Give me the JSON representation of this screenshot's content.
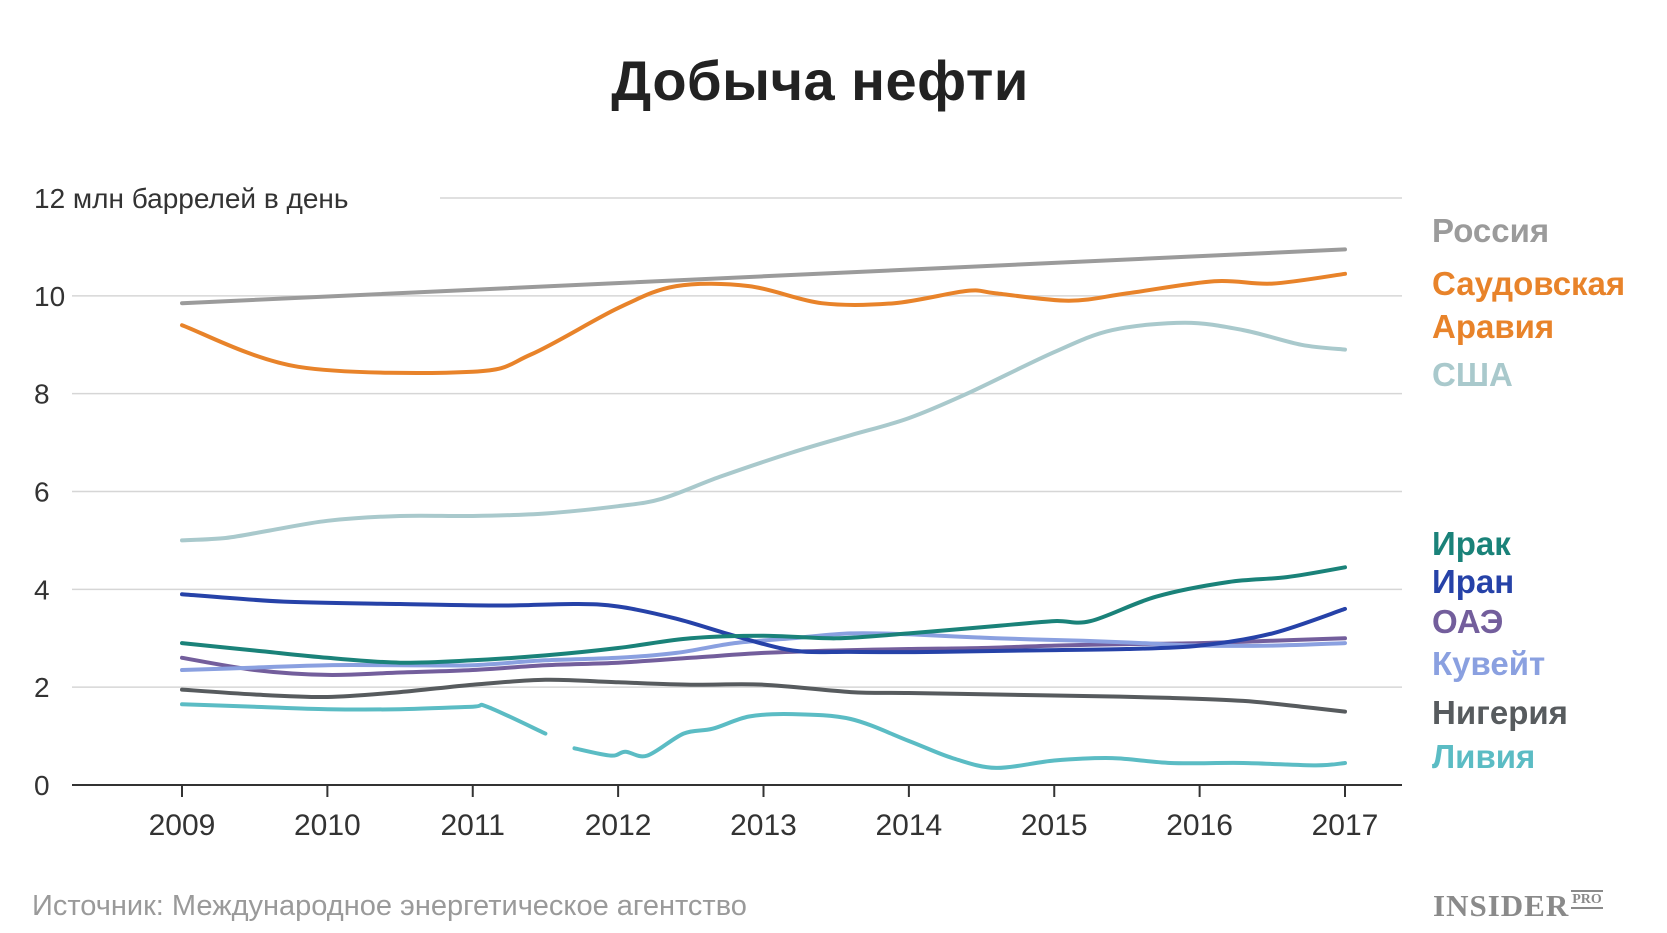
{
  "title": "Добыча нефти",
  "source": "Источник: Международное энергетическое агентство",
  "brand": {
    "name": "INSIDER",
    "suffix": "PRO"
  },
  "chart_data": {
    "type": "line",
    "ylabel": "12 млн баррелей в день",
    "ylim": [
      0,
      12
    ],
    "xlim": [
      2009,
      2017
    ],
    "yticks": [
      0,
      2,
      4,
      6,
      8,
      10,
      12
    ],
    "ytick_labels": [
      "0",
      "2",
      "4",
      "6",
      "8",
      "10",
      ""
    ],
    "xticks": [
      2009,
      2010,
      2011,
      2012,
      2013,
      2014,
      2015,
      2016,
      2017
    ],
    "xtick_labels": [
      "2009",
      "2010",
      "2011",
      "2012",
      "2013",
      "2014",
      "2015",
      "2016",
      "2017"
    ],
    "grid": true,
    "legend": "right, labels beside line ends",
    "series": [
      {
        "name": "Россия",
        "label_lines": [
          "Россия"
        ],
        "color": "#9b9b9b",
        "points": [
          [
            2009,
            9.85
          ],
          [
            2017,
            10.95
          ]
        ]
      },
      {
        "name": "Саудовская Аравия",
        "label_lines": [
          "Саудовская",
          "Аравия"
        ],
        "color": "#e8832a",
        "points": [
          [
            2009,
            9.4
          ],
          [
            2009.8,
            8.55
          ],
          [
            2011,
            8.45
          ],
          [
            2011.4,
            8.8
          ],
          [
            2012,
            9.75
          ],
          [
            2012.4,
            10.2
          ],
          [
            2012.9,
            10.2
          ],
          [
            2013.4,
            9.85
          ],
          [
            2013.9,
            9.85
          ],
          [
            2014.4,
            10.1
          ],
          [
            2014.6,
            10.05
          ],
          [
            2015.1,
            9.9
          ],
          [
            2015.5,
            10.05
          ],
          [
            2016.1,
            10.3
          ],
          [
            2016.5,
            10.25
          ],
          [
            2017,
            10.45
          ]
        ]
      },
      {
        "name": "США",
        "label_lines": [
          "США"
        ],
        "color": "#a9c9cc",
        "points": [
          [
            2009,
            5.0
          ],
          [
            2009.3,
            5.05
          ],
          [
            2009.6,
            5.2
          ],
          [
            2010,
            5.4
          ],
          [
            2010.5,
            5.5
          ],
          [
            2011,
            5.5
          ],
          [
            2011.5,
            5.55
          ],
          [
            2012,
            5.7
          ],
          [
            2012.3,
            5.85
          ],
          [
            2012.7,
            6.3
          ],
          [
            2013.2,
            6.8
          ],
          [
            2013.6,
            7.15
          ],
          [
            2014,
            7.5
          ],
          [
            2014.4,
            8.0
          ],
          [
            2015,
            8.85
          ],
          [
            2015.4,
            9.3
          ],
          [
            2015.9,
            9.45
          ],
          [
            2016.3,
            9.3
          ],
          [
            2016.7,
            9.0
          ],
          [
            2017,
            8.9
          ]
        ]
      },
      {
        "name": "Ирак",
        "label_lines": [
          "Ирак"
        ],
        "color": "#1a8279",
        "points": [
          [
            2009,
            2.9
          ],
          [
            2009.5,
            2.75
          ],
          [
            2010,
            2.6
          ],
          [
            2010.5,
            2.5
          ],
          [
            2011,
            2.55
          ],
          [
            2011.5,
            2.65
          ],
          [
            2012,
            2.8
          ],
          [
            2012.5,
            3.0
          ],
          [
            2013,
            3.05
          ],
          [
            2013.5,
            3.0
          ],
          [
            2014,
            3.1
          ],
          [
            2014.6,
            3.25
          ],
          [
            2015,
            3.35
          ],
          [
            2015.25,
            3.35
          ],
          [
            2015.7,
            3.85
          ],
          [
            2016.2,
            4.15
          ],
          [
            2016.6,
            4.25
          ],
          [
            2017,
            4.45
          ]
        ]
      },
      {
        "name": "Иран",
        "label_lines": [
          "Иран"
        ],
        "color": "#2642a8",
        "points": [
          [
            2009,
            3.9
          ],
          [
            2009.7,
            3.75
          ],
          [
            2010.5,
            3.7
          ],
          [
            2011.2,
            3.67
          ],
          [
            2011.7,
            3.7
          ],
          [
            2012,
            3.65
          ],
          [
            2012.4,
            3.4
          ],
          [
            2012.8,
            3.05
          ],
          [
            2013.2,
            2.75
          ],
          [
            2013.6,
            2.72
          ],
          [
            2014.2,
            2.72
          ],
          [
            2014.8,
            2.75
          ],
          [
            2015.5,
            2.78
          ],
          [
            2016,
            2.85
          ],
          [
            2016.5,
            3.1
          ],
          [
            2017,
            3.6
          ]
        ]
      },
      {
        "name": "ОАЭ",
        "label_lines": [
          "ОАЭ"
        ],
        "color": "#735e9c",
        "points": [
          [
            2009,
            2.6
          ],
          [
            2009.5,
            2.35
          ],
          [
            2010,
            2.25
          ],
          [
            2010.5,
            2.3
          ],
          [
            2011,
            2.35
          ],
          [
            2011.5,
            2.45
          ],
          [
            2012,
            2.5
          ],
          [
            2012.5,
            2.6
          ],
          [
            2013,
            2.7
          ],
          [
            2013.5,
            2.75
          ],
          [
            2014,
            2.78
          ],
          [
            2014.5,
            2.8
          ],
          [
            2015,
            2.85
          ],
          [
            2015.5,
            2.88
          ],
          [
            2016,
            2.9
          ],
          [
            2016.5,
            2.95
          ],
          [
            2017,
            3.0
          ]
        ]
      },
      {
        "name": "Кувейт",
        "label_lines": [
          "Кувейт"
        ],
        "color": "#8aa0e0",
        "points": [
          [
            2009,
            2.35
          ],
          [
            2009.5,
            2.4
          ],
          [
            2010,
            2.45
          ],
          [
            2010.5,
            2.45
          ],
          [
            2011,
            2.45
          ],
          [
            2011.5,
            2.55
          ],
          [
            2012,
            2.6
          ],
          [
            2012.4,
            2.7
          ],
          [
            2012.8,
            2.9
          ],
          [
            2013.2,
            3.0
          ],
          [
            2013.6,
            3.1
          ],
          [
            2014,
            3.08
          ],
          [
            2014.6,
            3.0
          ],
          [
            2015.2,
            2.95
          ],
          [
            2015.6,
            2.9
          ],
          [
            2016,
            2.85
          ],
          [
            2016.5,
            2.85
          ],
          [
            2017,
            2.9
          ]
        ]
      },
      {
        "name": "Нигерия",
        "label_lines": [
          "Нигерия"
        ],
        "color": "#575b5e",
        "points": [
          [
            2009,
            1.95
          ],
          [
            2009.5,
            1.85
          ],
          [
            2010,
            1.8
          ],
          [
            2010.5,
            1.9
          ],
          [
            2011,
            2.05
          ],
          [
            2011.5,
            2.15
          ],
          [
            2012,
            2.1
          ],
          [
            2012.5,
            2.05
          ],
          [
            2013,
            2.05
          ],
          [
            2013.6,
            1.9
          ],
          [
            2014,
            1.88
          ],
          [
            2014.6,
            1.85
          ],
          [
            2015.2,
            1.82
          ],
          [
            2015.8,
            1.78
          ],
          [
            2016.3,
            1.72
          ],
          [
            2016.7,
            1.6
          ],
          [
            2017,
            1.5
          ]
        ]
      },
      {
        "name": "Ливия",
        "label_lines": [
          "Ливия"
        ],
        "color": "#5bbcc4",
        "points": [
          [
            2009,
            1.65
          ],
          [
            2009.5,
            1.6
          ],
          [
            2010,
            1.55
          ],
          [
            2010.5,
            1.55
          ],
          [
            2011,
            1.6
          ],
          [
            2011.1,
            1.6
          ],
          [
            2011.5,
            1.05
          ],
          null,
          [
            2011.7,
            0.75
          ],
          [
            2011.95,
            0.6
          ],
          [
            2012.05,
            0.68
          ],
          [
            2012.2,
            0.6
          ],
          [
            2012.45,
            1.05
          ],
          [
            2012.65,
            1.15
          ],
          [
            2012.9,
            1.4
          ],
          [
            2013.2,
            1.45
          ],
          [
            2013.6,
            1.35
          ],
          [
            2014,
            0.9
          ],
          [
            2014.3,
            0.55
          ],
          [
            2014.6,
            0.35
          ],
          [
            2015,
            0.5
          ],
          [
            2015.4,
            0.55
          ],
          [
            2015.8,
            0.45
          ],
          [
            2016.3,
            0.45
          ],
          [
            2016.8,
            0.4
          ],
          [
            2017,
            0.45
          ]
        ]
      }
    ]
  }
}
